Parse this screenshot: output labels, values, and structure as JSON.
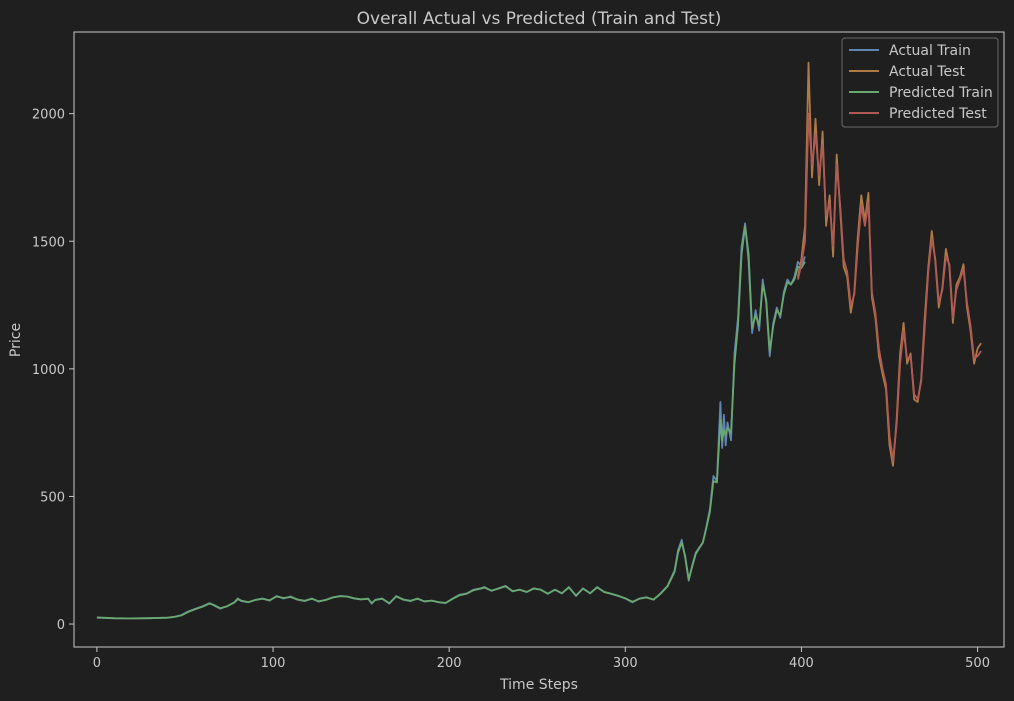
{
  "chart_data": {
    "type": "line",
    "title": "Overall Actual vs Predicted (Train and Test)",
    "xlabel": "Time Steps",
    "ylabel": "Price",
    "xlim": [
      -13,
      515
    ],
    "ylim": [
      -90,
      2320
    ],
    "xticks": [
      0,
      100,
      200,
      300,
      400,
      500
    ],
    "yticks": [
      0,
      500,
      1000,
      1500,
      2000
    ],
    "grid": false,
    "legend_position": "top-right",
    "series": [
      {
        "name": "Actual Train",
        "color": "#5f86b3",
        "x": [
          0,
          10,
          20,
          30,
          40,
          44,
          48,
          52,
          56,
          60,
          64,
          66,
          70,
          74,
          78,
          80,
          82,
          86,
          90,
          94,
          98,
          102,
          106,
          110,
          114,
          118,
          122,
          126,
          130,
          134,
          138,
          142,
          146,
          150,
          154,
          156,
          158,
          162,
          166,
          170,
          174,
          178,
          182,
          186,
          190,
          194,
          198,
          202,
          206,
          210,
          214,
          218,
          220,
          224,
          228,
          232,
          236,
          240,
          244,
          248,
          252,
          256,
          260,
          264,
          268,
          272,
          276,
          280,
          284,
          288,
          292,
          296,
          300,
          304,
          308,
          312,
          316,
          320,
          324,
          328,
          330,
          332,
          334,
          336,
          338,
          340,
          342,
          344,
          346,
          348,
          350,
          352,
          354,
          355,
          356,
          357,
          358,
          360,
          362,
          364,
          366,
          368,
          370,
          372,
          374,
          376,
          378,
          380,
          382,
          384,
          386,
          388,
          390,
          392,
          394,
          396,
          398,
          400,
          402
        ],
        "y": [
          25,
          22,
          22,
          23,
          25,
          28,
          35,
          50,
          60,
          70,
          82,
          75,
          60,
          70,
          85,
          100,
          90,
          85,
          95,
          100,
          92,
          110,
          100,
          108,
          95,
          90,
          100,
          88,
          95,
          105,
          110,
          108,
          100,
          96,
          100,
          80,
          95,
          100,
          80,
          110,
          95,
          90,
          100,
          88,
          92,
          85,
          82,
          100,
          115,
          120,
          135,
          140,
          145,
          130,
          140,
          150,
          128,
          135,
          125,
          140,
          135,
          118,
          135,
          120,
          145,
          110,
          140,
          120,
          145,
          125,
          118,
          110,
          100,
          85,
          100,
          105,
          95,
          120,
          150,
          210,
          290,
          330,
          260,
          170,
          230,
          280,
          300,
          320,
          380,
          450,
          580,
          560,
          870,
          690,
          820,
          700,
          790,
          720,
          1060,
          1200,
          1480,
          1570,
          1420,
          1140,
          1230,
          1150,
          1350,
          1260,
          1050,
          1180,
          1240,
          1200,
          1300,
          1350,
          1330,
          1360,
          1420,
          1400,
          1440
        ]
      },
      {
        "name": "Actual Test",
        "color": "#b07a45",
        "x": [
          398,
          400,
          402,
          404,
          406,
          408,
          410,
          412,
          414,
          416,
          418,
          420,
          422,
          424,
          426,
          428,
          430,
          432,
          434,
          436,
          438,
          440,
          442,
          444,
          446,
          448,
          450,
          452,
          454,
          456,
          458,
          460,
          462,
          464,
          466,
          468,
          470,
          472,
          474,
          476,
          478,
          480,
          482,
          484,
          486,
          488,
          490,
          492,
          494,
          496,
          498,
          500,
          502
        ],
        "y": [
          1360,
          1430,
          1560,
          2200,
          1750,
          1980,
          1720,
          1930,
          1560,
          1680,
          1440,
          1840,
          1620,
          1400,
          1360,
          1220,
          1300,
          1520,
          1680,
          1580,
          1690,
          1280,
          1200,
          1050,
          980,
          920,
          700,
          620,
          800,
          1060,
          1180,
          1020,
          1060,
          880,
          870,
          960,
          1200,
          1400,
          1540,
          1420,
          1240,
          1320,
          1470,
          1400,
          1180,
          1330,
          1360,
          1410,
          1240,
          1150,
          1020,
          1080,
          1100
        ]
      },
      {
        "name": "Predicted Train",
        "color": "#6aa86f",
        "x": [
          0,
          10,
          20,
          30,
          40,
          44,
          48,
          52,
          56,
          60,
          64,
          66,
          70,
          74,
          78,
          80,
          82,
          86,
          90,
          94,
          98,
          102,
          106,
          110,
          114,
          118,
          122,
          126,
          130,
          134,
          138,
          142,
          146,
          150,
          154,
          156,
          158,
          162,
          166,
          170,
          174,
          178,
          182,
          186,
          190,
          194,
          198,
          202,
          206,
          210,
          214,
          218,
          220,
          224,
          228,
          232,
          236,
          240,
          244,
          248,
          252,
          256,
          260,
          264,
          268,
          272,
          276,
          280,
          284,
          288,
          292,
          296,
          300,
          304,
          308,
          312,
          316,
          320,
          324,
          328,
          330,
          332,
          334,
          336,
          338,
          340,
          342,
          344,
          346,
          348,
          350,
          352,
          354,
          355,
          356,
          357,
          358,
          360,
          362,
          364,
          366,
          368,
          370,
          372,
          374,
          376,
          378,
          380,
          382,
          384,
          386,
          388,
          390,
          392,
          394,
          396,
          398,
          400,
          402
        ],
        "y": [
          26,
          23,
          22,
          23,
          25,
          28,
          34,
          48,
          58,
          68,
          80,
          76,
          62,
          70,
          84,
          98,
          92,
          86,
          94,
          99,
          93,
          108,
          102,
          106,
          96,
          91,
          99,
          89,
          94,
          104,
          109,
          108,
          101,
          97,
          99,
          82,
          94,
          99,
          82,
          108,
          96,
          91,
          99,
          89,
          92,
          86,
          83,
          99,
          113,
          119,
          133,
          139,
          143,
          131,
          139,
          148,
          129,
          134,
          126,
          139,
          134,
          119,
          134,
          121,
          143,
          112,
          139,
          121,
          143,
          126,
          119,
          111,
          101,
          87,
          99,
          104,
          96,
          118,
          148,
          205,
          280,
          320,
          265,
          175,
          225,
          275,
          298,
          318,
          375,
          440,
          560,
          555,
          800,
          720,
          760,
          740,
          770,
          750,
          1020,
          1170,
          1450,
          1560,
          1450,
          1160,
          1210,
          1170,
          1330,
          1270,
          1070,
          1170,
          1230,
          1210,
          1290,
          1340,
          1330,
          1350,
          1400,
          1395,
          1420
        ]
      },
      {
        "name": "Predicted Test",
        "color": "#b05a55",
        "x": [
          398,
          400,
          402,
          404,
          406,
          408,
          410,
          412,
          414,
          416,
          418,
          420,
          422,
          424,
          426,
          428,
          430,
          432,
          434,
          436,
          438,
          440,
          442,
          444,
          446,
          448,
          450,
          452,
          454,
          456,
          458,
          460,
          462,
          464,
          466,
          468,
          470,
          472,
          474,
          476,
          478,
          480,
          482,
          484,
          486,
          488,
          490,
          492,
          494,
          496,
          498,
          500,
          502
        ],
        "y": [
          1350,
          1410,
          1500,
          2000,
          1800,
          1920,
          1760,
          1880,
          1600,
          1650,
          1480,
          1800,
          1640,
          1430,
          1380,
          1250,
          1290,
          1480,
          1640,
          1560,
          1650,
          1300,
          1220,
          1080,
          1000,
          940,
          740,
          640,
          780,
          1020,
          1150,
          1040,
          1050,
          900,
          880,
          950,
          1160,
          1380,
          1510,
          1430,
          1260,
          1310,
          1440,
          1410,
          1200,
          1310,
          1350,
          1390,
          1260,
          1170,
          1040,
          1050,
          1070
        ]
      }
    ]
  }
}
